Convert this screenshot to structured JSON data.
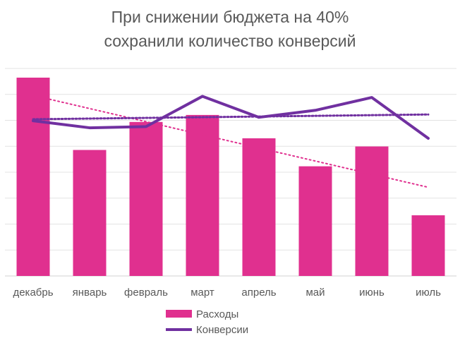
{
  "chart_data": {
    "type": "bar",
    "title_lines": [
      "При снижении бюджета на 40%",
      "сохранили количество конверсий"
    ],
    "categories": [
      "декабрь",
      "январь",
      "февраль",
      "март",
      "апрель",
      "май",
      "июнь",
      "июль"
    ],
    "ylim": [
      0,
      8.5
    ],
    "gridlines": true,
    "legend_position": "bottom",
    "series": [
      {
        "name": "Расходы",
        "kind": "bar",
        "color": "#e0308f",
        "values": [
          8.5,
          5.4,
          6.6,
          6.9,
          5.9,
          4.7,
          5.55,
          2.6
        ],
        "trendline": true
      },
      {
        "name": "Конверсии",
        "kind": "line",
        "color": "#7030a0",
        "values": [
          6.65,
          6.35,
          6.4,
          7.7,
          6.8,
          7.1,
          7.65,
          5.9
        ],
        "trendline": true
      }
    ]
  }
}
